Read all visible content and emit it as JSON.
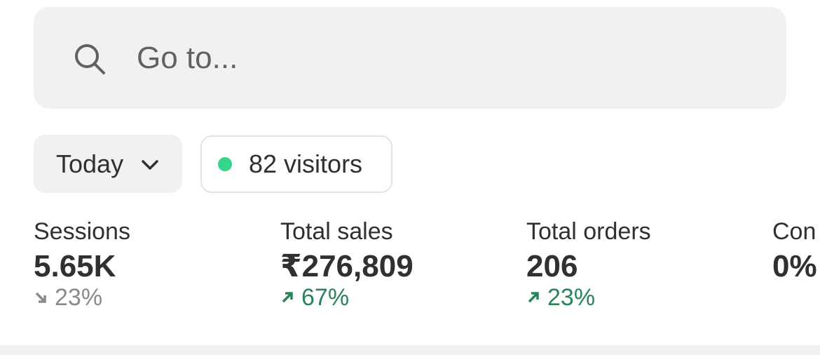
{
  "search": {
    "placeholder": "Go to..."
  },
  "filters": {
    "date": "Today",
    "visitors": "82 visitors"
  },
  "metrics": [
    {
      "label": "Sessions",
      "value": "5.65K",
      "change": "23%",
      "trend": "down"
    },
    {
      "label": "Total sales",
      "value": "₹276,809",
      "change": "67%",
      "trend": "up"
    },
    {
      "label": "Total orders",
      "value": "206",
      "change": "23%",
      "trend": "up"
    },
    {
      "label": "Con",
      "value": "0%"
    }
  ]
}
